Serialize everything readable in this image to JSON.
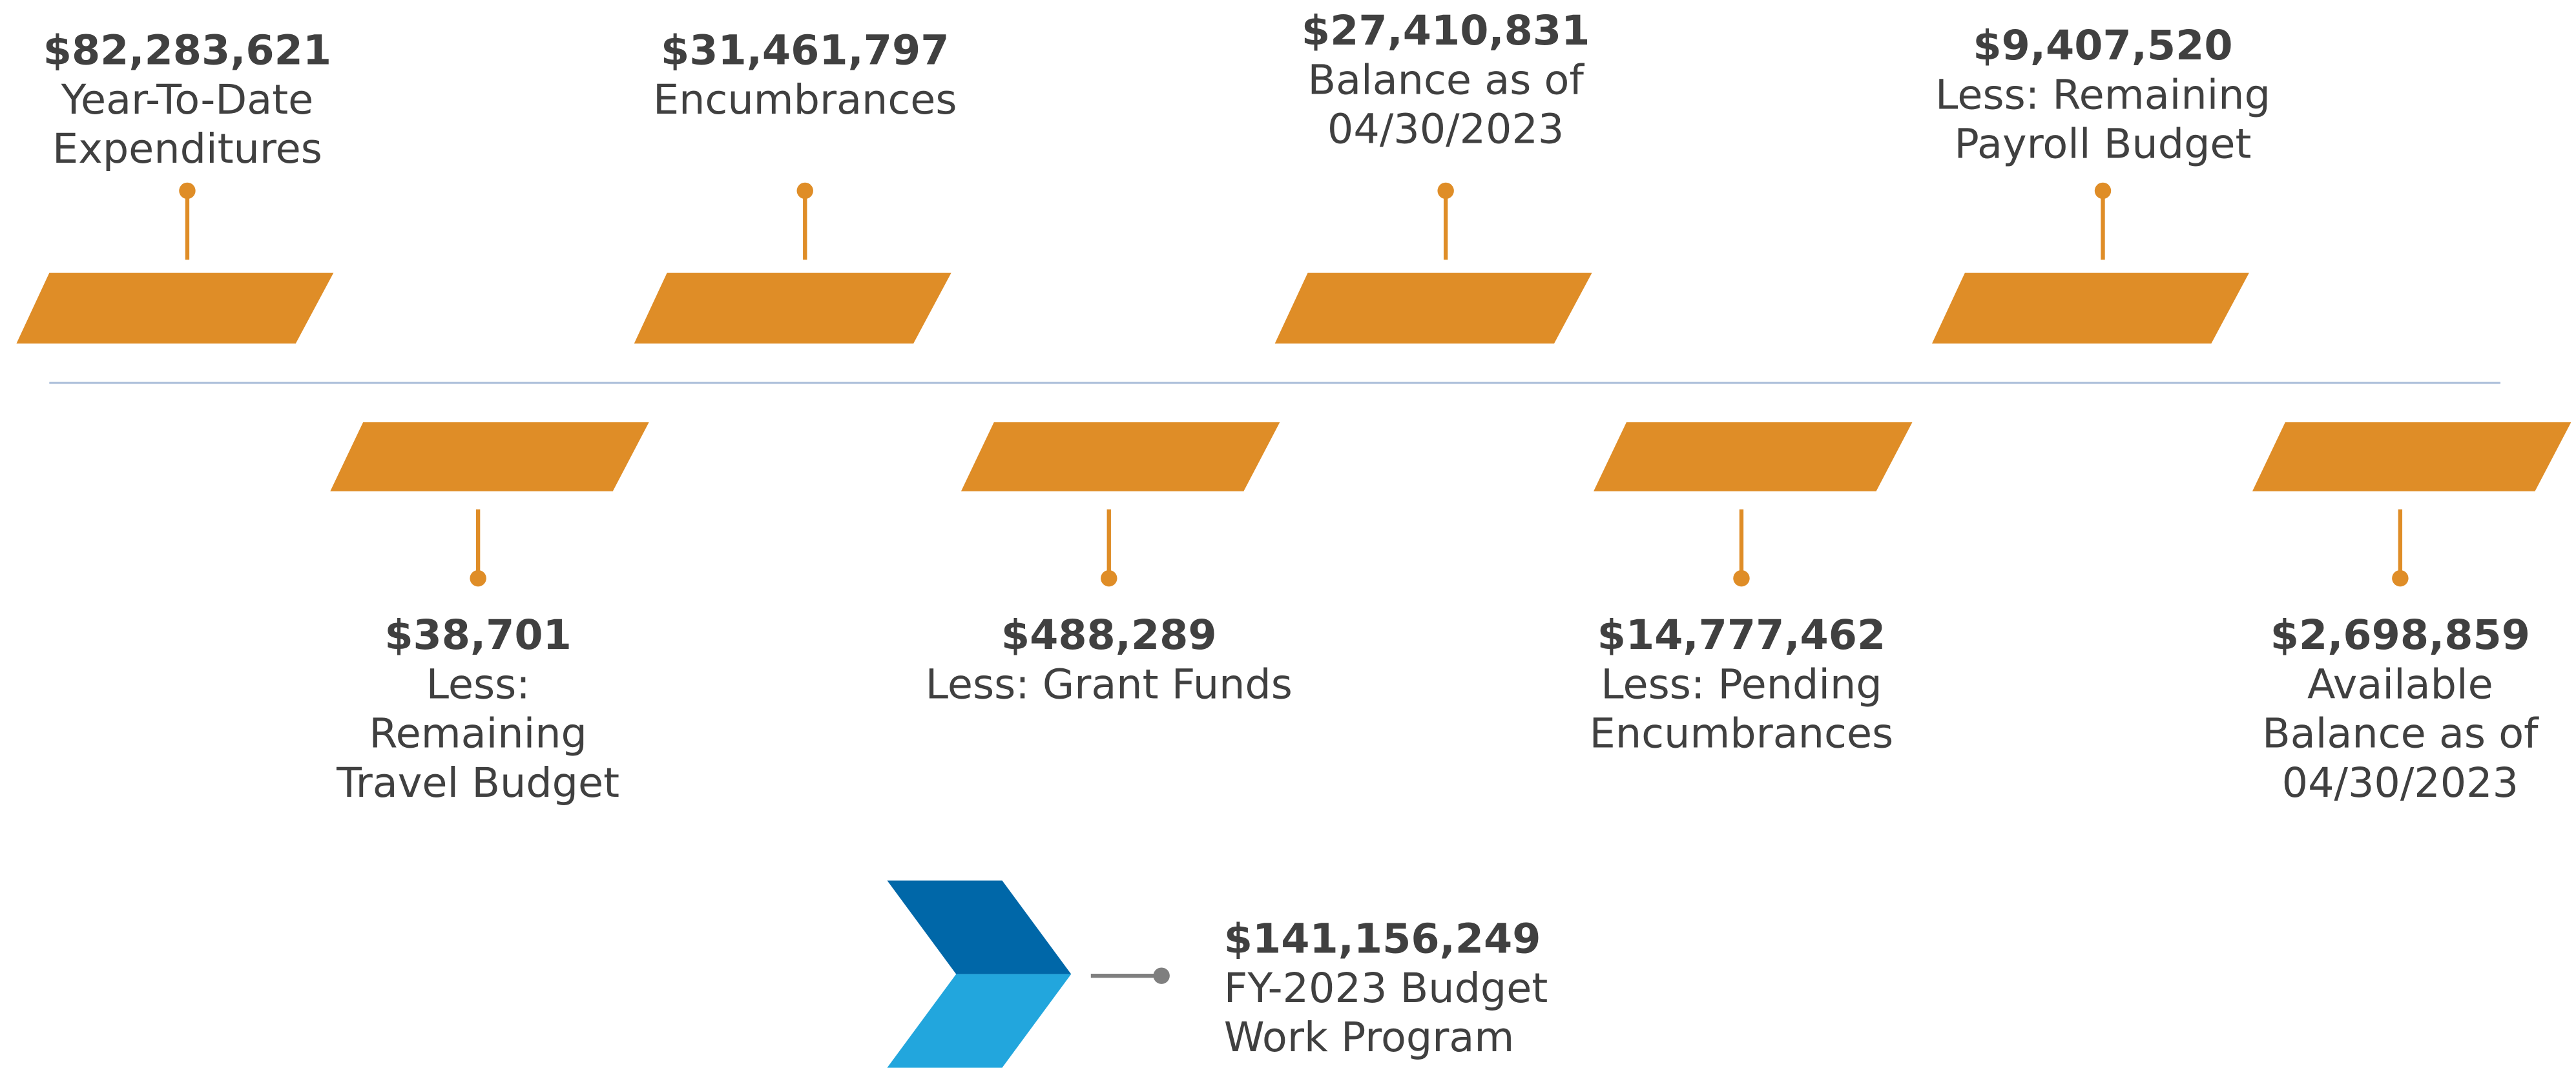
{
  "items": [
    {
      "amount": "$82,283,621",
      "lines": [
        "Year-To-Date",
        "Expenditures"
      ]
    },
    {
      "amount": "$31,461,797",
      "lines": [
        "Encumbrances"
      ]
    },
    {
      "amount": "$27,410,831",
      "lines": [
        "Balance as of",
        "04/30/2023"
      ]
    },
    {
      "amount": "$9,407,520",
      "lines": [
        "Less: Remaining",
        "Payroll Budget"
      ]
    },
    {
      "amount": "$38,701",
      "lines": [
        "Less:",
        "Remaining",
        "Travel Budget"
      ]
    },
    {
      "amount": "$488,289",
      "lines": [
        "Less: Grant Funds"
      ]
    },
    {
      "amount": "$14,777,462",
      "lines": [
        "Less: Pending",
        "Encumbrances"
      ]
    },
    {
      "amount": "$2,698,859",
      "lines": [
        "Available",
        "Balance as of",
        "04/30/2023"
      ]
    }
  ],
  "budget": {
    "amount": "$141,156,249",
    "lines": [
      "FY-2023 Budget",
      "Work Program"
    ]
  }
}
